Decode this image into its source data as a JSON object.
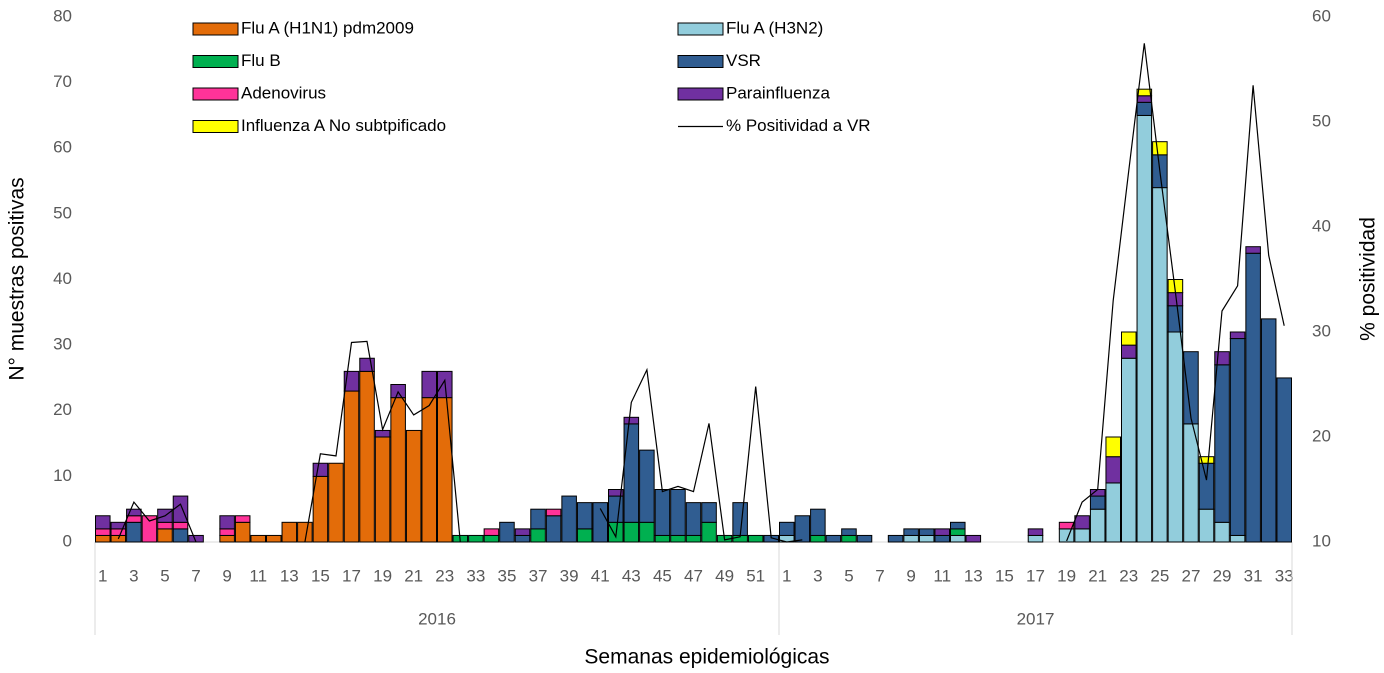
{
  "chart_data": {
    "type": "bar",
    "stacked": true,
    "x_title": "Semanas epidemiológicas",
    "y_title": "N° muestras positivas",
    "y2_title": "% positividad",
    "categories": [
      "1",
      null,
      "3",
      null,
      "5",
      null,
      "7",
      null,
      "9",
      null,
      "11",
      null,
      "13",
      null,
      "15",
      null,
      "17",
      null,
      "19",
      null,
      "21",
      null,
      "23",
      null,
      "33",
      null,
      "35",
      null,
      "37",
      null,
      "39",
      null,
      "41",
      null,
      "43",
      null,
      "45",
      null,
      "47",
      null,
      "49",
      null,
      "51",
      null,
      "1",
      null,
      "3",
      null,
      "5",
      null,
      "7",
      null,
      "9",
      null,
      "11",
      null,
      "13",
      null,
      "15",
      null,
      "17",
      null,
      "19",
      null,
      "21",
      null,
      "23",
      null,
      "25",
      null,
      "27",
      null,
      "29",
      null,
      "31",
      null,
      "33"
    ],
    "x_groups": [
      {
        "label": "2016",
        "count": 44
      },
      {
        "label": "2017",
        "count": 33
      }
    ],
    "ylim": [
      0,
      80
    ],
    "yticks": [
      0,
      10,
      20,
      30,
      40,
      50,
      60,
      70,
      80
    ],
    "y2lim": [
      10,
      60
    ],
    "y2ticks": [
      10,
      20,
      30,
      40,
      50,
      60
    ],
    "grid": false,
    "legend": "top",
    "series": [
      {
        "name": "Flu A (H1N1) pdm2009",
        "color": "#e36c09",
        "values": [
          1,
          1,
          0,
          0,
          2,
          0,
          0,
          0,
          1,
          3,
          1,
          1,
          3,
          3,
          10,
          12,
          23,
          26,
          16,
          22,
          17,
          22,
          22,
          0,
          0,
          0,
          0,
          0,
          0,
          0,
          0,
          0,
          0,
          0,
          0,
          0,
          0,
          0,
          0,
          0,
          0,
          0,
          0,
          0,
          0,
          0,
          0,
          0,
          0,
          0,
          0,
          0,
          0,
          0,
          0,
          0,
          0,
          0,
          0,
          0,
          0,
          0,
          0,
          0,
          0,
          0,
          0,
          0,
          0,
          0,
          0,
          0,
          0,
          0,
          0,
          0,
          0
        ]
      },
      {
        "name": "Flu A (H3N2)",
        "color": "#92cddc",
        "values": [
          0,
          0,
          0,
          0,
          0,
          0,
          0,
          0,
          0,
          0,
          0,
          0,
          0,
          0,
          0,
          0,
          0,
          0,
          0,
          0,
          0,
          0,
          0,
          0,
          0,
          0,
          0,
          0,
          0,
          0,
          0,
          0,
          0,
          0,
          0,
          0,
          0,
          0,
          0,
          0,
          0,
          0,
          0,
          0,
          1,
          0,
          0,
          0,
          0,
          0,
          0,
          0,
          1,
          1,
          0,
          1,
          0,
          0,
          0,
          0,
          1,
          0,
          2,
          2,
          5,
          9,
          28,
          65,
          54,
          32,
          18,
          5,
          3,
          1,
          0,
          0,
          0
        ]
      },
      {
        "name": "Flu B",
        "color": "#00b050",
        "values": [
          0,
          0,
          0,
          0,
          0,
          0,
          0,
          0,
          0,
          0,
          0,
          0,
          0,
          0,
          0,
          0,
          0,
          0,
          0,
          0,
          0,
          0,
          0,
          1,
          1,
          1,
          0,
          0,
          2,
          0,
          0,
          2,
          0,
          3,
          3,
          3,
          1,
          1,
          1,
          3,
          1,
          1,
          1,
          0,
          0,
          0,
          1,
          0,
          1,
          0,
          0,
          0,
          0,
          0,
          0,
          1,
          0,
          0,
          0,
          0,
          0,
          0,
          0,
          0,
          0,
          0,
          0,
          0,
          0,
          0,
          0,
          0,
          0,
          0,
          0,
          0,
          0
        ]
      },
      {
        "name": "VSR",
        "color": "#305d91",
        "values": [
          0,
          0,
          3,
          0,
          0,
          2,
          0,
          0,
          0,
          0,
          0,
          0,
          0,
          0,
          0,
          0,
          0,
          0,
          0,
          0,
          0,
          0,
          0,
          0,
          0,
          0,
          3,
          1,
          3,
          4,
          7,
          4,
          6,
          4,
          15,
          11,
          7,
          7,
          5,
          3,
          0,
          5,
          0,
          1,
          2,
          4,
          4,
          1,
          1,
          1,
          0,
          1,
          1,
          1,
          1,
          1,
          0,
          0,
          0,
          0,
          0,
          0,
          0,
          0,
          2,
          0,
          0,
          2,
          5,
          4,
          11,
          7,
          24,
          30,
          44,
          34,
          25
        ]
      },
      {
        "name": "Adenovirus",
        "color": "#ff3399",
        "values": [
          1,
          1,
          1,
          4,
          1,
          1,
          0,
          0,
          1,
          1,
          0,
          0,
          0,
          0,
          0,
          0,
          0,
          0,
          0,
          0,
          0,
          0,
          0,
          0,
          0,
          1,
          0,
          0,
          0,
          1,
          0,
          0,
          0,
          0,
          0,
          0,
          0,
          0,
          0,
          0,
          0,
          0,
          0,
          0,
          0,
          0,
          0,
          0,
          0,
          0,
          0,
          0,
          0,
          0,
          0,
          0,
          0,
          0,
          0,
          0,
          0,
          0,
          1,
          0,
          0,
          0,
          0,
          0,
          0,
          0,
          0,
          0,
          0,
          0,
          0,
          0,
          0
        ]
      },
      {
        "name": "Parainfluenza",
        "color": "#7030a0",
        "values": [
          2,
          1,
          1,
          0,
          2,
          4,
          1,
          0,
          2,
          0,
          0,
          0,
          0,
          0,
          2,
          0,
          3,
          2,
          1,
          2,
          0,
          4,
          4,
          0,
          0,
          0,
          0,
          1,
          0,
          0,
          0,
          0,
          0,
          1,
          1,
          0,
          0,
          0,
          0,
          0,
          0,
          0,
          0,
          0,
          0,
          0,
          0,
          0,
          0,
          0,
          0,
          0,
          0,
          0,
          1,
          0,
          1,
          0,
          0,
          0,
          1,
          0,
          0,
          2,
          1,
          4,
          2,
          1,
          0,
          2,
          0,
          0,
          2,
          1,
          1,
          0,
          0
        ]
      },
      {
        "name": "Influenza A No subtpificado",
        "color": "#ffff00",
        "values": [
          0,
          0,
          0,
          0,
          0,
          0,
          0,
          0,
          0,
          0,
          0,
          0,
          0,
          0,
          0,
          0,
          0,
          0,
          0,
          0,
          0,
          0,
          0,
          0,
          0,
          0,
          0,
          0,
          0,
          0,
          0,
          0,
          0,
          0,
          0,
          0,
          0,
          0,
          0,
          0,
          0,
          0,
          0,
          0,
          0,
          0,
          0,
          0,
          0,
          0,
          0,
          0,
          0,
          0,
          0,
          0,
          0,
          0,
          0,
          0,
          0,
          0,
          0,
          0,
          0,
          3,
          2,
          1,
          2,
          2,
          0,
          1,
          0,
          0,
          0,
          0,
          0
        ]
      },
      {
        "name": "% Positividad a VR",
        "type": "line",
        "axis": "y2",
        "color": "#000000",
        "values": [
          null,
          10.3,
          13.8,
          12,
          12.5,
          13.6,
          10,
          null,
          null,
          null,
          null,
          null,
          null,
          10,
          18.4,
          18.2,
          29,
          29.1,
          20.7,
          24.3,
          22.1,
          23,
          25.4,
          10,
          null,
          null,
          null,
          null,
          null,
          null,
          null,
          null,
          13.2,
          10.5,
          23.3,
          26.4,
          14.8,
          15.3,
          14.8,
          21.3,
          10.2,
          10.5,
          24.8,
          10.4,
          10,
          10.2,
          null,
          null,
          null,
          null,
          null,
          null,
          null,
          null,
          null,
          null,
          null,
          null,
          null,
          null,
          null,
          null,
          10.1,
          13.8,
          15,
          33,
          45.4,
          57.5,
          45.3,
          33.8,
          21.8,
          15.9,
          32,
          34.4,
          53.5,
          37.3,
          30.6
        ]
      }
    ]
  }
}
